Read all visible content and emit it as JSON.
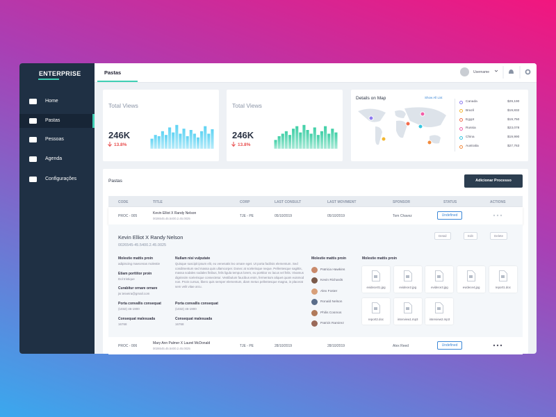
{
  "sidebar": {
    "brand": "ENTERPRISE",
    "menu": [
      "Home",
      "Pastas",
      "Pessoas",
      "Agenda",
      "Configurações"
    ],
    "active": 1
  },
  "topbar": {
    "tab": "Pastas",
    "user": "Username"
  },
  "cards": [
    {
      "title": "Total Views",
      "value": "246K",
      "change": "13.8%",
      "color": "#5fd3f3",
      "bars": [
        40,
        55,
        50,
        70,
        55,
        85,
        65,
        95,
        60,
        80,
        50,
        75,
        60,
        45,
        70,
        90,
        60,
        78
      ]
    },
    {
      "title": "Total Views",
      "value": "246K",
      "change": "13.8%",
      "color": "#3fcfa6",
      "bars": [
        35,
        50,
        60,
        70,
        55,
        80,
        90,
        65,
        95,
        75,
        60,
        85,
        55,
        70,
        90,
        60,
        80,
        65
      ]
    }
  ],
  "map": {
    "title": "Details on Map",
    "link": "Show All List",
    "countries": [
      {
        "name": "Canada",
        "amount": "$29,190",
        "color": "#8e7cf0"
      },
      {
        "name": "Brazil",
        "amount": "$19,832",
        "color": "#f2b731"
      },
      {
        "name": "Egypt",
        "amount": "$19,750",
        "color": "#f26b4b"
      },
      {
        "name": "Russia",
        "amount": "$23,078",
        "color": "#f25ea8"
      },
      {
        "name": "China",
        "amount": "$19,990",
        "color": "#35c6e0"
      },
      {
        "name": "Australia",
        "amount": "$27,763",
        "color": "#f28a3c"
      }
    ]
  },
  "pastas": {
    "title": "Pastas",
    "button": "Adicionar Processo",
    "columns": [
      "CODE",
      "TITLE",
      "CORP",
      "LAST CONSULT",
      "LAST MOVIMENT",
      "SPONSOR",
      "STATUS",
      "ACTIONS"
    ],
    "rows": [
      {
        "code": "PROC - 005",
        "title": "Kevin Elliot X Randy Nelson",
        "number": "0026545.45.5400.2.45.0025",
        "corp": "TJE - PE",
        "last_consult": "05/10/2019",
        "last_moviment": "05/10/2019",
        "sponsor": "Tom Chavez",
        "status": "Undefined"
      },
      {
        "code": "PROC - 006",
        "title": "Mary Ann Palmer X Laurel McDonald",
        "number": "0026545.45.5400.2.45.0025",
        "corp": "TJE - PE",
        "last_consult": "28/10/2019",
        "last_moviment": "28/10/2019",
        "sponsor": "Alex Reed",
        "status": "Undefined"
      }
    ],
    "detail": {
      "title": "Kevin Elliot X Randy Nelson",
      "number": "0026545-45.5400.2.45.0025",
      "actions": [
        "Detail",
        "Edit",
        "Delete"
      ],
      "fields": [
        {
          "label": "Molestie mattis proin",
          "value": "adipiscing maecenas molestie"
        },
        {
          "label": "Etiam porttitor proin",
          "value": "Dol tristique"
        },
        {
          "label": "Curabitur ornare ornare",
          "value": "jsr.teixeira@gmail.com"
        },
        {
          "label": "Porta convallis consequat",
          "value": "(1032) 46-1900"
        },
        {
          "label": "Consequat malesuada",
          "value": "16768"
        }
      ],
      "note": {
        "label": "Nullam nisi vulputate",
        "text": "Quisque suscipit ipsum elit, eu venenatis leo ornare eget. Ut porta facilisis elementum. Sed condimentum sed massa quis ullamcorper. Donec at scelerisque neque. Pellentesque sagittis, massa sodales sodales finibus, felis ligula tempus lorem, eu porttitor ex lacus vel felis. Vivamus dignissim scelerisque consectetur. Vestibulum faucibus enim, fermentum aliquet quam euismod non. Proin cursus, libero quis semper elementum, diam metus pellentesque magna, in placerat sem velit vitae arcu."
      },
      "fields2": [
        {
          "label": "Porta convallis consequat",
          "value": "(1032) 46-1900"
        },
        {
          "label": "Consequat malesuada",
          "value": "16768"
        }
      ],
      "people": {
        "label": "Molestie mattis proin",
        "names": [
          "Patricia Hawkins",
          "Kevin Richards",
          "Alex Foster",
          "Ronald Nelson",
          "Philis Cosmos",
          "Patrick Ramirez"
        ]
      },
      "files": {
        "label": "Molestie mattis proin",
        "names": [
          "evidece01.jpg",
          "evidece2.jpg",
          "evidece3.jpg",
          "evidece4.jpg",
          "report1.doc",
          "report2.doc",
          "interview1.mp3",
          "interview2.mp3"
        ]
      }
    }
  }
}
